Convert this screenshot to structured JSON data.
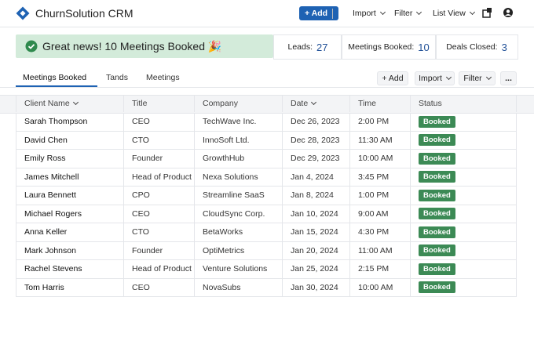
{
  "header": {
    "brand": "ChurnSolution CRM",
    "buttons": [
      "+ Add",
      "Import",
      "Filter",
      "List View"
    ]
  },
  "banner": "Great news! 10 Meetings Booked 🎉",
  "stats": [
    {
      "label": "Leads:",
      "value": 27
    },
    {
      "label": "Meetings Booked:",
      "value": 10
    },
    {
      "label": "Deals Closed:",
      "value": 3
    }
  ],
  "tabs": [
    "Meetings Booked",
    "Tands",
    "Meetings"
  ],
  "toolbar": [
    "+ Add",
    "Import",
    "Filter",
    "..."
  ],
  "table": {
    "columns": [
      "Client Name",
      "Title",
      "Company",
      "Date",
      "Time",
      "Status"
    ],
    "rows": [
      [
        "Sarah Thompson",
        "CEO",
        "TechWave Inc.",
        "Dec 26, 2023",
        "2:00 PM",
        "Booked"
      ],
      [
        "David Chen",
        "CTO",
        "InnoSoft Ltd.",
        "Dec 28, 2023",
        "11:30 AM",
        "Booked"
      ],
      [
        "Emily Ross",
        "Founder",
        "GrowthHub",
        "Dec 29, 2023",
        "10:00 AM",
        "Booked"
      ],
      [
        "James Mitchell",
        "Head of Product",
        "Nexa Solutions",
        "Jan 4, 2024",
        "3:45 PM",
        "Booked"
      ],
      [
        "Laura Bennett",
        "CPO",
        "Streamline SaaS",
        "Jan 8, 2024",
        "1:00 PM",
        "Booked"
      ],
      [
        "Michael Rogers",
        "CEO",
        "CloudSync Corp.",
        "Jan 10, 2024",
        "9:00 AM",
        "Booked"
      ],
      [
        "Anna Keller",
        "CTO",
        "BetaWorks",
        "Jan 15, 2024",
        "4:30 PM",
        "Booked"
      ],
      [
        "Mark Johnson",
        "Founder",
        "OptiMetrics",
        "Jan 20, 2024",
        "11:00 AM",
        "Booked"
      ],
      [
        "Rachel Stevens",
        "Head of Product",
        "Venture Solutions",
        "Jan 25, 2024",
        "2:15 PM",
        "Booked"
      ],
      [
        "Tom Harris",
        "CEO",
        "NovaSubs",
        "Jan 30, 2024",
        "10:00 AM",
        "Booked"
      ]
    ]
  }
}
